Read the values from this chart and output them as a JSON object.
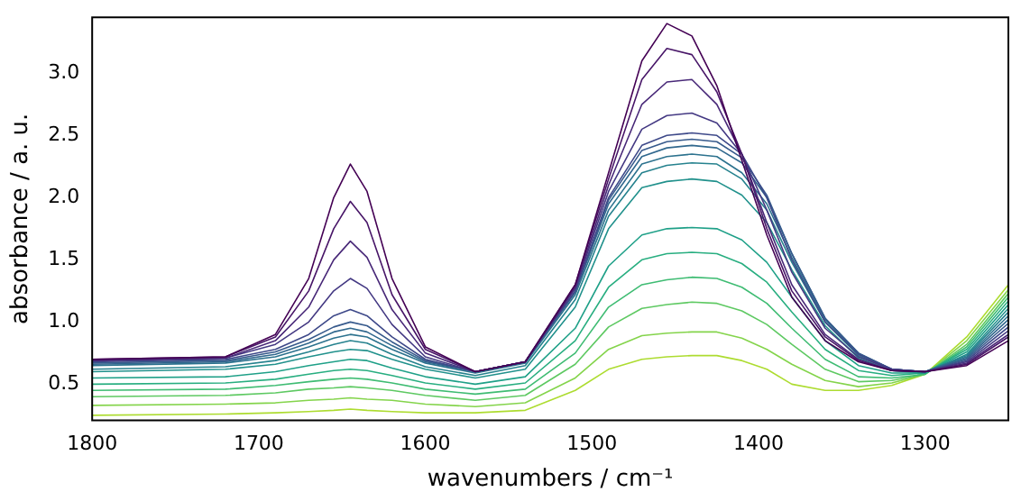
{
  "chart_data": {
    "type": "line",
    "xlabel": "wavenumbers / cm⁻¹",
    "ylabel": "absorbance / a. u.",
    "x": [
      1800,
      1720,
      1690,
      1670,
      1655,
      1645,
      1635,
      1620,
      1600,
      1570,
      1540,
      1510,
      1490,
      1470,
      1455,
      1440,
      1425,
      1410,
      1395,
      1380,
      1360,
      1340,
      1320,
      1300,
      1275,
      1250
    ],
    "xlim": [
      1800,
      1250
    ],
    "xticks": [
      1800,
      1700,
      1600,
      1500,
      1400,
      1300
    ],
    "ylim": [
      0.21,
      3.45
    ],
    "yticks": [
      0.5,
      {
        "value": 1,
        "label": "1.0"
      },
      1.5,
      {
        "value": 2,
        "label": "2.0"
      },
      2.5,
      {
        "value": 3,
        "label": "3.0"
      }
    ],
    "grid": false,
    "legend": false,
    "marker": "none",
    "line_style": "solid",
    "series": [
      {
        "color": "#440154",
        "values": [
          0.7,
          0.72,
          0.9,
          1.35,
          2.0,
          2.27,
          2.05,
          1.35,
          0.8,
          0.6,
          0.68,
          1.3,
          2.2,
          3.1,
          3.4,
          3.3,
          2.9,
          2.3,
          1.7,
          1.2,
          0.85,
          0.68,
          0.61,
          0.6,
          0.65,
          0.85
        ]
      },
      {
        "color": "#481668",
        "values": [
          0.7,
          0.72,
          0.88,
          1.25,
          1.75,
          1.97,
          1.8,
          1.22,
          0.78,
          0.6,
          0.68,
          1.3,
          2.15,
          2.95,
          3.2,
          3.15,
          2.85,
          2.35,
          1.75,
          1.25,
          0.88,
          0.69,
          0.61,
          0.6,
          0.66,
          0.88
        ]
      },
      {
        "color": "#482878",
        "values": [
          0.69,
          0.71,
          0.85,
          1.12,
          1.5,
          1.65,
          1.52,
          1.1,
          0.75,
          0.6,
          0.68,
          1.28,
          2.1,
          2.75,
          2.93,
          2.95,
          2.75,
          2.35,
          1.8,
          1.3,
          0.9,
          0.7,
          0.61,
          0.6,
          0.67,
          0.9
        ]
      },
      {
        "color": "#443983",
        "values": [
          0.69,
          0.71,
          0.82,
          1.0,
          1.25,
          1.35,
          1.27,
          0.98,
          0.72,
          0.6,
          0.68,
          1.27,
          2.05,
          2.55,
          2.66,
          2.68,
          2.6,
          2.35,
          1.9,
          1.4,
          0.95,
          0.72,
          0.62,
          0.6,
          0.68,
          0.93
        ]
      },
      {
        "color": "#3e4989",
        "values": [
          0.68,
          0.7,
          0.78,
          0.9,
          1.05,
          1.1,
          1.05,
          0.88,
          0.7,
          0.6,
          0.68,
          1.25,
          2.0,
          2.42,
          2.5,
          2.52,
          2.5,
          2.35,
          2.0,
          1.5,
          1.0,
          0.74,
          0.62,
          0.6,
          0.69,
          0.96
        ]
      },
      {
        "color": "#375a8c",
        "values": [
          0.67,
          0.69,
          0.76,
          0.86,
          0.96,
          1.0,
          0.97,
          0.84,
          0.69,
          0.6,
          0.68,
          1.25,
          1.98,
          2.38,
          2.45,
          2.47,
          2.45,
          2.32,
          2.02,
          1.55,
          1.03,
          0.75,
          0.62,
          0.6,
          0.7,
          0.99
        ]
      },
      {
        "color": "#31688e",
        "values": [
          0.66,
          0.68,
          0.74,
          0.83,
          0.92,
          0.95,
          0.92,
          0.81,
          0.68,
          0.6,
          0.68,
          1.24,
          1.95,
          2.33,
          2.4,
          2.42,
          2.4,
          2.28,
          2.0,
          1.55,
          1.03,
          0.75,
          0.62,
          0.6,
          0.71,
          1.02
        ]
      },
      {
        "color": "#2c728e",
        "values": [
          0.65,
          0.67,
          0.72,
          0.8,
          0.87,
          0.9,
          0.88,
          0.78,
          0.67,
          0.59,
          0.67,
          1.22,
          1.9,
          2.27,
          2.33,
          2.35,
          2.33,
          2.2,
          1.95,
          1.52,
          1.02,
          0.74,
          0.62,
          0.6,
          0.72,
          1.05
        ]
      },
      {
        "color": "#26828e",
        "values": [
          0.62,
          0.64,
          0.69,
          0.76,
          0.82,
          0.85,
          0.83,
          0.74,
          0.64,
          0.57,
          0.65,
          1.18,
          1.85,
          2.2,
          2.26,
          2.28,
          2.27,
          2.15,
          1.9,
          1.48,
          1.0,
          0.73,
          0.61,
          0.6,
          0.73,
          1.08
        ]
      },
      {
        "color": "#21918c",
        "values": [
          0.6,
          0.62,
          0.66,
          0.72,
          0.76,
          0.78,
          0.77,
          0.7,
          0.62,
          0.55,
          0.62,
          1.12,
          1.75,
          2.08,
          2.13,
          2.15,
          2.13,
          2.02,
          1.8,
          1.42,
          0.97,
          0.71,
          0.61,
          0.59,
          0.74,
          1.11
        ]
      },
      {
        "color": "#1fa088",
        "values": [
          0.55,
          0.56,
          0.6,
          0.65,
          0.68,
          0.7,
          0.69,
          0.63,
          0.56,
          0.5,
          0.56,
          0.95,
          1.45,
          1.7,
          1.75,
          1.76,
          1.75,
          1.66,
          1.48,
          1.2,
          0.85,
          0.65,
          0.59,
          0.59,
          0.76,
          1.14
        ]
      },
      {
        "color": "#28ae80",
        "values": [
          0.5,
          0.51,
          0.54,
          0.58,
          0.61,
          0.62,
          0.61,
          0.57,
          0.51,
          0.46,
          0.51,
          0.85,
          1.28,
          1.5,
          1.55,
          1.56,
          1.55,
          1.47,
          1.32,
          1.08,
          0.78,
          0.61,
          0.57,
          0.59,
          0.78,
          1.17
        ]
      },
      {
        "color": "#3fbc73",
        "values": [
          0.45,
          0.46,
          0.49,
          0.52,
          0.54,
          0.55,
          0.54,
          0.51,
          0.46,
          0.42,
          0.46,
          0.75,
          1.12,
          1.3,
          1.34,
          1.36,
          1.35,
          1.28,
          1.15,
          0.95,
          0.7,
          0.56,
          0.55,
          0.58,
          0.8,
          1.2
        ]
      },
      {
        "color": "#5ec962",
        "values": [
          0.4,
          0.41,
          0.43,
          0.46,
          0.47,
          0.48,
          0.47,
          0.45,
          0.41,
          0.37,
          0.41,
          0.66,
          0.96,
          1.11,
          1.14,
          1.16,
          1.15,
          1.09,
          0.98,
          0.82,
          0.62,
          0.52,
          0.53,
          0.58,
          0.82,
          1.23
        ]
      },
      {
        "color": "#84d44b",
        "values": [
          0.33,
          0.34,
          0.35,
          0.37,
          0.38,
          0.39,
          0.38,
          0.37,
          0.34,
          0.32,
          0.35,
          0.55,
          0.78,
          0.89,
          0.91,
          0.92,
          0.92,
          0.87,
          0.78,
          0.66,
          0.53,
          0.48,
          0.51,
          0.58,
          0.85,
          1.26
        ]
      },
      {
        "color": "#addc30",
        "values": [
          0.25,
          0.26,
          0.27,
          0.28,
          0.29,
          0.3,
          0.29,
          0.28,
          0.27,
          0.27,
          0.29,
          0.45,
          0.62,
          0.7,
          0.72,
          0.73,
          0.73,
          0.69,
          0.62,
          0.5,
          0.45,
          0.45,
          0.49,
          0.58,
          0.88,
          1.3
        ]
      }
    ]
  }
}
